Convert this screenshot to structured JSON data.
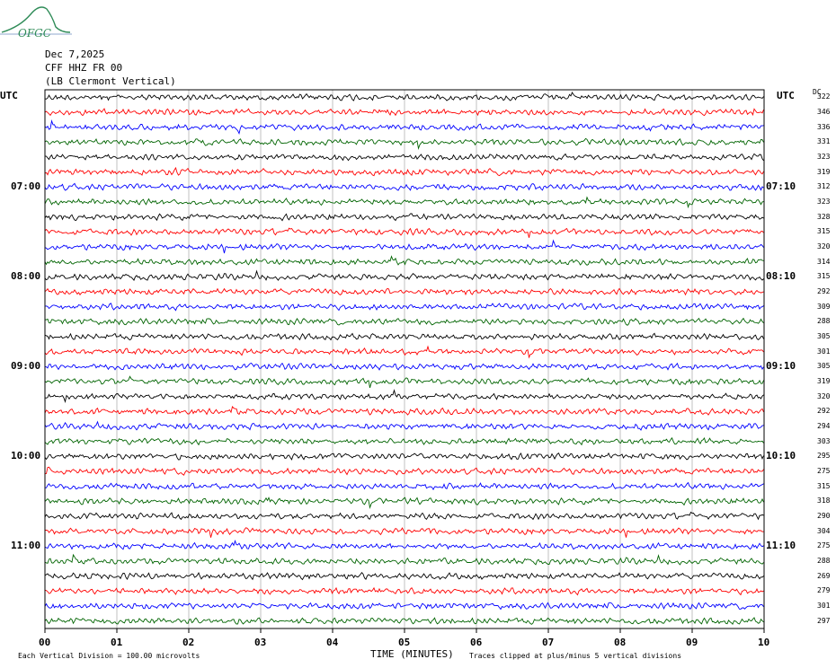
{
  "logo": {
    "text": "OFGC",
    "color": "#2e8b57"
  },
  "header": {
    "date": "Dec 7,2025",
    "station": "CFF HHZ FR 00",
    "location": "(LB  Clermont Vertical)"
  },
  "left_axis_title": "UTC",
  "right_axis_title": "UTC",
  "dc_title": "DC",
  "chart_data": {
    "type": "line",
    "description_kind": "helicorder seismogram",
    "x_axis": {
      "label": "TIME (MINUTES)",
      "range": [
        0,
        10
      ],
      "ticks": [
        "00",
        "01",
        "02",
        "03",
        "04",
        "05",
        "06",
        "07",
        "08",
        "09",
        "10"
      ]
    },
    "left_time_labels": [
      "07:00",
      "08:00",
      "09:00",
      "10:00",
      "11:00"
    ],
    "right_time_labels": [
      "07:10",
      "08:10",
      "09:10",
      "10:10",
      "11:10"
    ],
    "trace_colors": [
      "#000000",
      "#ff0000",
      "#0000ff",
      "#006400"
    ],
    "dc_offsets": [
      322,
      346,
      336,
      331,
      323,
      319,
      312,
      323,
      328,
      315,
      320,
      314,
      315,
      292,
      309,
      288,
      305,
      301,
      305,
      319,
      320,
      292,
      294,
      303,
      295,
      275,
      315,
      318,
      290,
      304,
      275,
      288,
      269,
      279,
      301,
      297
    ],
    "vertical_grid": true,
    "footnote_scale": "Each Vertical Division =  100.00 microvolts",
    "footnote_clip": "Traces clipped at plus/minus 5 vertical divisions"
  }
}
